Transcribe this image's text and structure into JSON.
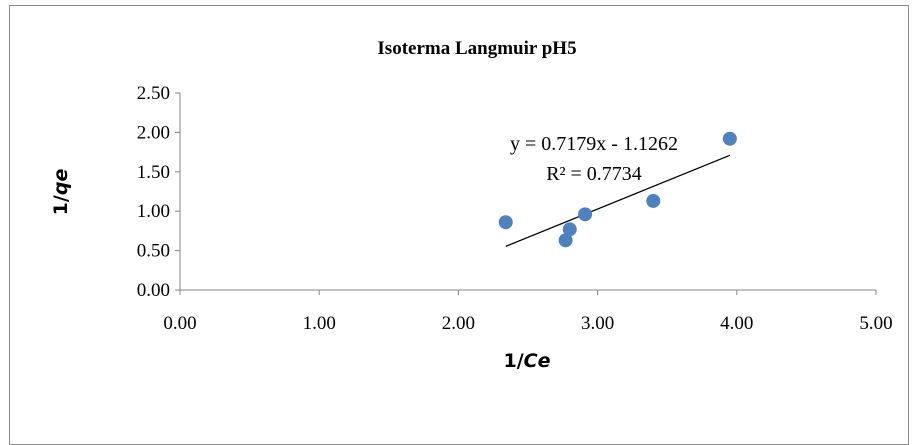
{
  "chart_data": {
    "type": "scatter",
    "title": "Isoterma Langmuir pH5",
    "xlabel": "1/Ce",
    "ylabel": "1/qe",
    "xlim": [
      0,
      5
    ],
    "ylim": [
      0,
      2.5
    ],
    "x_ticks": [
      "0.00",
      "1.00",
      "2.00",
      "3.00",
      "4.00",
      "5.00"
    ],
    "y_ticks": [
      "0.00",
      "0.50",
      "1.00",
      "1.50",
      "2.00",
      "2.50"
    ],
    "points": [
      {
        "x": 2.34,
        "y": 0.86
      },
      {
        "x": 2.77,
        "y": 0.63
      },
      {
        "x": 2.8,
        "y": 0.77
      },
      {
        "x": 2.91,
        "y": 0.96
      },
      {
        "x": 3.4,
        "y": 1.13
      },
      {
        "x": 3.95,
        "y": 1.92
      }
    ],
    "trendline": {
      "slope": 0.7179,
      "intercept": -1.1262,
      "x_range": [
        2.34,
        3.95
      ]
    },
    "equation_label": "y = 0.7179x - 1.1262",
    "r2_label": "R² = 0.7734",
    "point_color": "#4f81bd",
    "grid": false,
    "legend": "none"
  }
}
